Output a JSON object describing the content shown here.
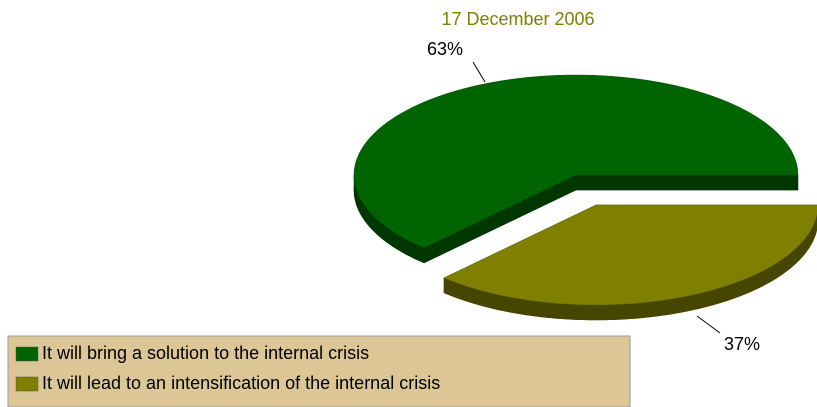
{
  "chart_data": {
    "type": "pie",
    "title": "17 December 2006",
    "categories": [
      "It will bring a solution to the internal crisis",
      "It will lead to an intensification of the internal crisis"
    ],
    "values": [
      63,
      37
    ],
    "value_labels": [
      "63%",
      "37%"
    ],
    "colors": [
      "#006400",
      "#808000"
    ]
  }
}
